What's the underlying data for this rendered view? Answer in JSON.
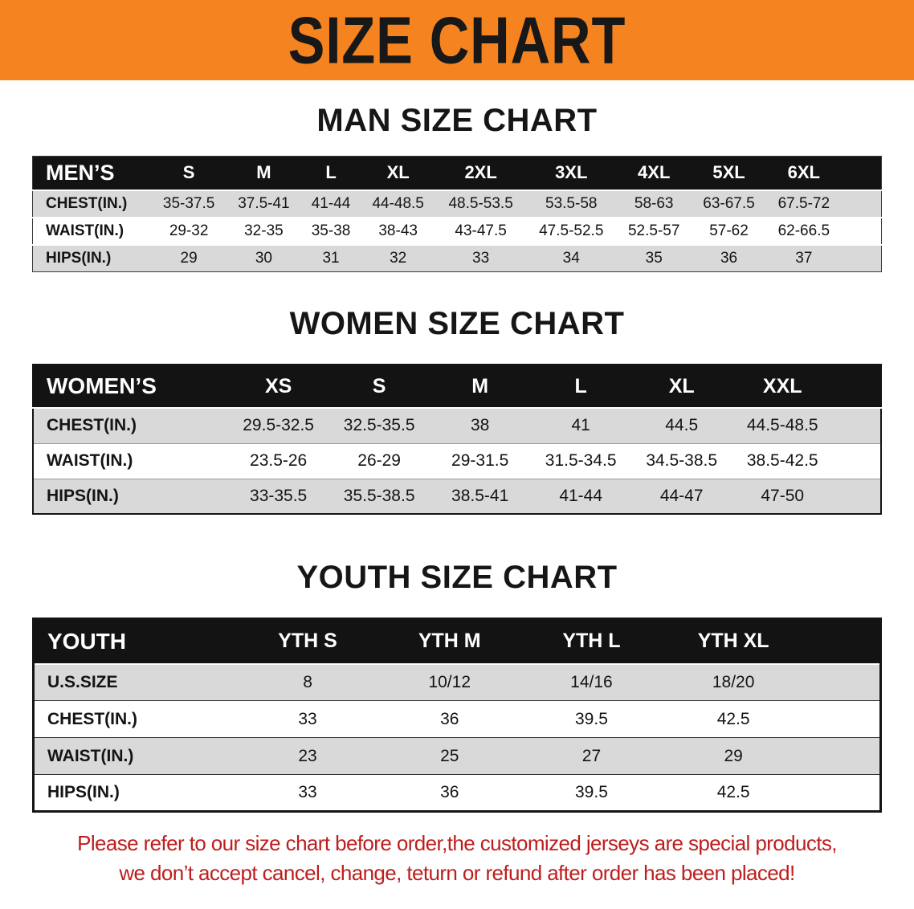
{
  "banner": {
    "title": "SIZE CHART"
  },
  "sections": [
    {
      "heading": "MAN SIZE CHART",
      "table": {
        "header": [
          "MEN’S",
          "S",
          "M",
          "L",
          "XL",
          "2XL",
          "3XL",
          "4XL",
          "5XL",
          "6XL"
        ],
        "rows": [
          [
            "CHEST(IN.)",
            "35-37.5",
            "37.5-41",
            "41-44",
            "44-48.5",
            "48.5-53.5",
            "53.5-58",
            "58-63",
            "63-67.5",
            "67.5-72"
          ],
          [
            "WAIST(IN.)",
            "29-32",
            "32-35",
            "35-38",
            "38-43",
            "43-47.5",
            "47.5-52.5",
            "52.5-57",
            "57-62",
            "62-66.5"
          ],
          [
            "HIPS(IN.)",
            "29",
            "30",
            "31",
            "32",
            "33",
            "34",
            "35",
            "36",
            "37"
          ]
        ]
      }
    },
    {
      "heading": "WOMEN SIZE CHART",
      "table": {
        "header": [
          "WOMEN’S",
          "XS",
          "S",
          "M",
          "L",
          "XL",
          "XXL"
        ],
        "rows": [
          [
            "CHEST(IN.)",
            "29.5-32.5",
            "32.5-35.5",
            "38",
            "41",
            "44.5",
            "44.5-48.5"
          ],
          [
            "WAIST(IN.)",
            "23.5-26",
            "26-29",
            "29-31.5",
            "31.5-34.5",
            "34.5-38.5",
            "38.5-42.5"
          ],
          [
            "HIPS(IN.)",
            "33-35.5",
            "35.5-38.5",
            "38.5-41",
            "41-44",
            "44-47",
            "47-50"
          ]
        ]
      }
    },
    {
      "heading": "YOUTH SIZE CHART",
      "table": {
        "header": [
          "YOUTH",
          "YTH S",
          "YTH M",
          "YTH L",
          "YTH XL"
        ],
        "rows": [
          [
            "U.S.SIZE",
            "8",
            "10/12",
            "14/16",
            "18/20"
          ],
          [
            "CHEST(IN.)",
            "33",
            "36",
            "39.5",
            "42.5"
          ],
          [
            "WAIST(IN.)",
            "23",
            "25",
            "27",
            "29"
          ],
          [
            "HIPS(IN.)",
            "33",
            "36",
            "39.5",
            "42.5"
          ]
        ]
      }
    }
  ],
  "notice": {
    "line1": "Please refer to our size chart before order,the customized jerseys are special products,",
    "line2": "we don’t accept cancel, change, teturn or refund after order has been placed!"
  },
  "colors": {
    "banner_bg": "#f5831f",
    "table_header_bg": "#131313",
    "row_stripe": "#d9d9d9",
    "notice_red": "#bf1d1d"
  }
}
